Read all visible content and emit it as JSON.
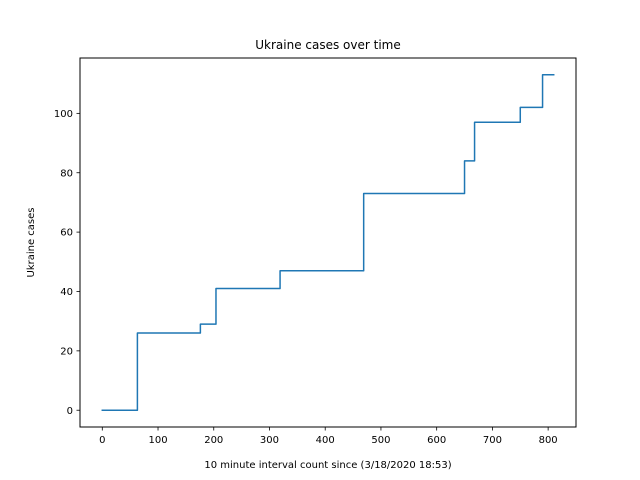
{
  "chart_data": {
    "type": "line",
    "title": "Ukraine cases over time",
    "xlabel": "10 minute interval count since (3/18/2020 18:53)",
    "ylabel": "Ukraine cases",
    "xlim": [
      -40,
      850
    ],
    "ylim": [
      -5.65,
      118.65
    ],
    "xticks": [
      0,
      100,
      200,
      300,
      400,
      500,
      600,
      700,
      800
    ],
    "yticks": [
      0,
      20,
      40,
      60,
      80,
      100
    ],
    "grid": false,
    "legend": "none",
    "series": [
      {
        "color": "#1f77b4",
        "step": "post",
        "x": [
          0,
          63,
          176,
          204,
          319,
          469,
          650,
          668,
          750,
          790,
          810
        ],
        "y": [
          0,
          26,
          29,
          41,
          47,
          73,
          84,
          97,
          102,
          113,
          113
        ]
      }
    ]
  }
}
